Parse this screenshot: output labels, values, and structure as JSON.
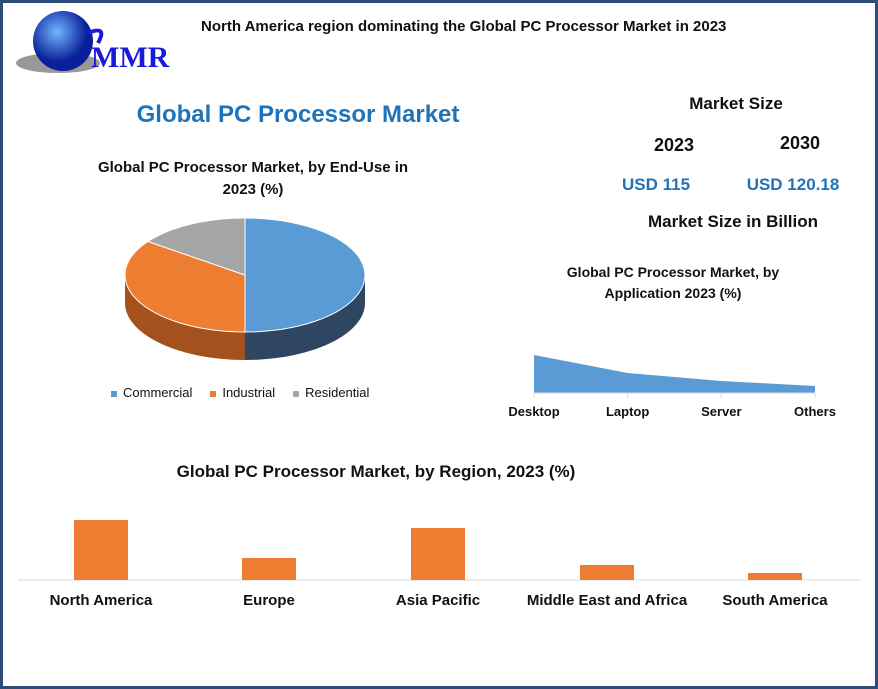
{
  "header": {
    "logo_text": "MMR",
    "headline": "North America region dominating the Global PC Processor Market in 2023"
  },
  "main_title": "Global PC Processor Market",
  "market_size": {
    "title": "Market Size",
    "year1": "2023",
    "year2": "2030",
    "value1": "USD 115",
    "value2": "USD 120.18",
    "unit": "Market Size in Billion"
  },
  "colors": {
    "commercial": "#5b9bd5",
    "industrial": "#ed7d31",
    "residential": "#a5a5a5",
    "accent": "#1f74b9",
    "frame": "#2f4b78"
  },
  "chart_data": [
    {
      "type": "pie",
      "title": "Global  PC Processor Market, by End-Use in 2023 (%)",
      "title_line1": "Global  PC Processor Market, by End-Use in",
      "title_line2": "2023 (%)",
      "categories": [
        "Commercial",
        "Industrial",
        "Residential"
      ],
      "values": [
        50,
        35,
        15
      ],
      "legend": "bottom",
      "style": "3d"
    },
    {
      "type": "area",
      "title_line1": "Global PC Processor Market, by",
      "title_line2": "Application 2023 (%)",
      "categories": [
        "Desktop",
        "Laptop",
        "Server",
        "Others"
      ],
      "values": [
        38,
        20,
        12,
        7
      ],
      "grid": false
    },
    {
      "type": "bar",
      "title": "Global PC Processor Market, by Region, 2023 (%)",
      "categories": [
        "North America",
        "Europe",
        "Asia Pacific",
        "Middle East and Africa",
        "South America"
      ],
      "values": [
        60,
        22,
        52,
        15,
        7
      ],
      "grid": false
    }
  ]
}
